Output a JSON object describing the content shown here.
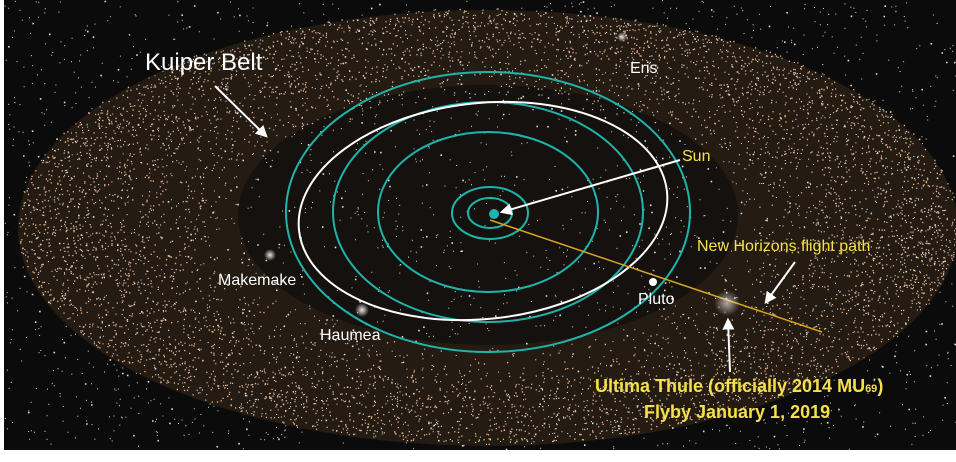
{
  "labels": {
    "kuiper_belt": "Kuiper Belt",
    "eris": "Eris",
    "sun": "Sun",
    "flight_path": "New Horizons flight path",
    "makemake": "Makemake",
    "haumea": "Haumea",
    "pluto": "Pluto"
  },
  "caption": {
    "line1_start": "Ultima Thule (officially 2014 MU",
    "line1_subscript": "69",
    "line1_end": ")",
    "line2": "Flyby January 1, 2019"
  }
}
